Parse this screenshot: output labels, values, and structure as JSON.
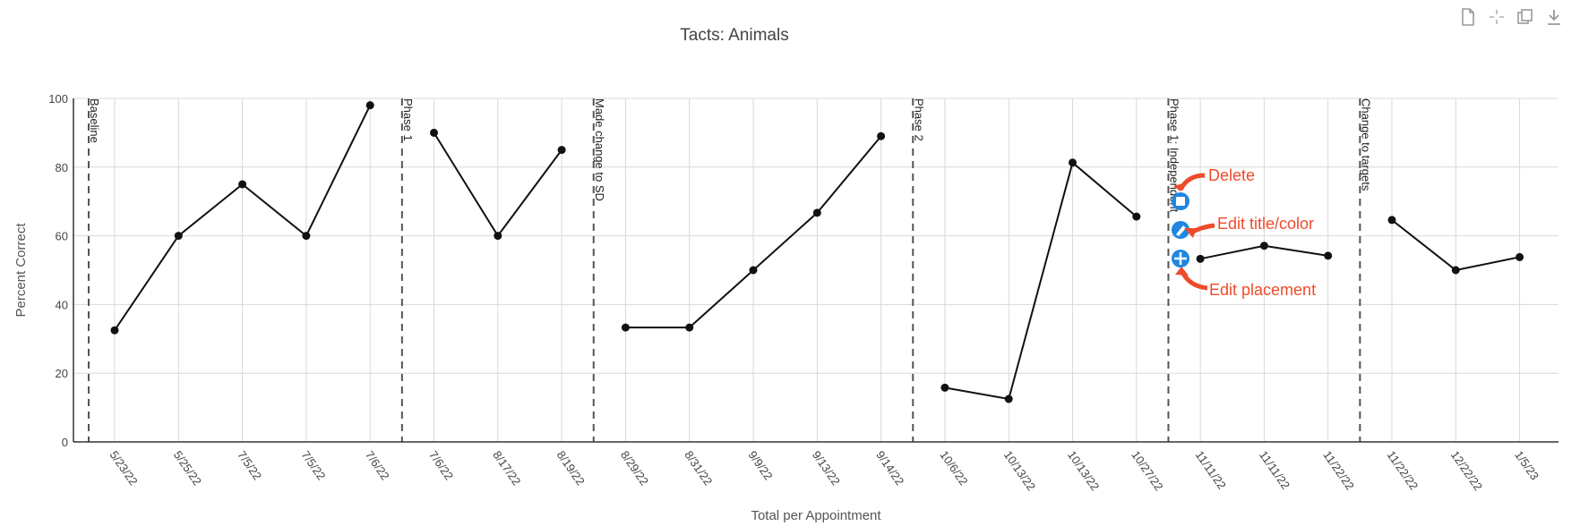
{
  "toolbar": {
    "icons": [
      "file-icon",
      "crosshair-icon",
      "copy-icon",
      "download-icon"
    ]
  },
  "chart_data": {
    "type": "line",
    "title": "Tacts: Animals",
    "xlabel": "Total per Appointment",
    "ylabel": "Percent Correct",
    "ylim": [
      0,
      100
    ],
    "yticks": [
      0,
      20,
      40,
      60,
      80,
      100
    ],
    "grid": true,
    "categories": [
      "5/23/22",
      "5/25/22",
      "7/5/22",
      "7/5/22",
      "7/6/22",
      "7/6/22",
      "8/17/22",
      "8/19/22",
      "8/29/22",
      "8/31/22",
      "9/9/22",
      "9/13/22",
      "9/14/22",
      "10/6/22",
      "10/13/22",
      "10/13/22",
      "10/27/22",
      "11/11/22",
      "11/11/22",
      "11/22/22",
      "11/22/22",
      "12/22/22",
      "1/5/23"
    ],
    "segments": [
      {
        "start": 0,
        "values": [
          32.5,
          60,
          75,
          60,
          98
        ]
      },
      {
        "start": 5,
        "values": [
          90,
          60,
          85
        ]
      },
      {
        "start": 8,
        "values": [
          33.3,
          33.3,
          50,
          66.7,
          89
        ]
      },
      {
        "start": 13,
        "values": [
          15.8,
          12.5,
          81.3,
          65.6
        ]
      },
      {
        "start": 17,
        "values": [
          53.3,
          57.1,
          54.2
        ]
      },
      {
        "start": 20,
        "values": [
          64.6,
          50,
          53.8
        ]
      }
    ],
    "phase_lines": [
      {
        "after_index": -1,
        "label": "Baseline"
      },
      {
        "after_index": 4,
        "label": "Phase 1"
      },
      {
        "after_index": 7,
        "label": "Made change to SD"
      },
      {
        "after_index": 12,
        "label": "Phase 2"
      },
      {
        "after_index": 16,
        "label": "Phase 1: Independent"
      },
      {
        "after_index": 19,
        "label": "Change to targets"
      }
    ],
    "line_color": "#111111"
  },
  "annotations": {
    "delete_label": "Delete",
    "edit_label": "Edit title/color",
    "placement_label": "Edit placement",
    "color": "#ee4b2b",
    "handle_color": "#1f87e0"
  }
}
